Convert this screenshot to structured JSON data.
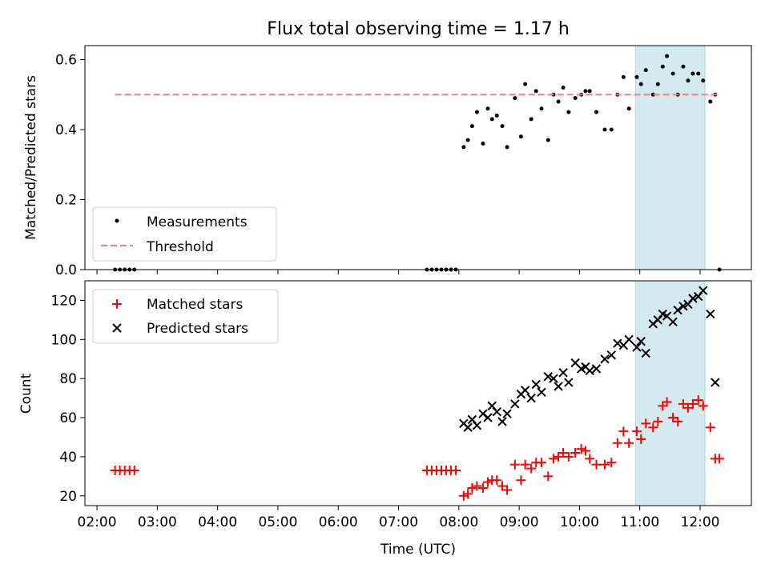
{
  "figure_title": "Flux total observing time = 1.17 h",
  "colors": {
    "measurement": "#000000",
    "threshold": "#ff7a7a",
    "matched": "#ff0000",
    "predicted": "#000000",
    "highlight": "#d3eaf0",
    "highlight_edge": "#a9d6de"
  },
  "chart_data": [
    {
      "type": "scatter",
      "title": "Flux total observing time = 1.17 h",
      "ylabel": "Matched/Predicted stars",
      "xlabel": "",
      "xlim": [
        1.8,
        12.85
      ],
      "ylim": [
        0,
        0.64
      ],
      "yticks": [
        0.0,
        0.2,
        0.4,
        0.6
      ],
      "ytick_labels": [
        "0.0",
        "0.2",
        "0.4",
        "0.6"
      ],
      "xticks": [
        2,
        3,
        4,
        5,
        6,
        7,
        8,
        9,
        10,
        11,
        12
      ],
      "xtick_labels": [],
      "legend": "lower-left",
      "grid": false,
      "highlight_x": [
        10.93,
        12.08
      ],
      "series": [
        {
          "name": "Measurements",
          "kind": "scatter",
          "marker": "dot",
          "x": [
            2.3,
            2.38,
            2.46,
            2.54,
            2.62,
            7.47,
            7.55,
            7.63,
            7.71,
            7.79,
            7.87,
            7.95,
            8.08,
            8.15,
            8.22,
            8.3,
            8.4,
            8.48,
            8.55,
            8.63,
            8.72,
            8.8,
            8.93,
            9.03,
            9.1,
            9.2,
            9.28,
            9.37,
            9.48,
            9.57,
            9.65,
            9.73,
            9.82,
            9.93,
            10.03,
            10.1,
            10.17,
            10.28,
            10.42,
            10.53,
            10.63,
            10.73,
            10.82,
            10.95,
            11.02,
            11.1,
            11.22,
            11.3,
            11.38,
            11.45,
            11.55,
            11.63,
            11.72,
            11.8,
            11.88,
            11.97,
            12.05,
            12.17,
            12.25,
            12.32
          ],
          "y": [
            0.0,
            0.0,
            0.0,
            0.0,
            0.0,
            0.0,
            0.0,
            0.0,
            0.0,
            0.0,
            0.0,
            0.0,
            0.35,
            0.37,
            0.41,
            0.45,
            0.36,
            0.46,
            0.43,
            0.44,
            0.41,
            0.35,
            0.49,
            0.38,
            0.53,
            0.43,
            0.51,
            0.46,
            0.37,
            0.5,
            0.48,
            0.52,
            0.45,
            0.49,
            0.5,
            0.51,
            0.51,
            0.45,
            0.4,
            0.4,
            0.5,
            0.55,
            0.46,
            0.55,
            0.53,
            0.57,
            0.5,
            0.53,
            0.58,
            0.61,
            0.56,
            0.5,
            0.58,
            0.54,
            0.56,
            0.56,
            0.54,
            0.48,
            0.5,
            0.0
          ]
        },
        {
          "name": "Threshold",
          "kind": "line",
          "dashed": true,
          "x": [
            2.3,
            12.32
          ],
          "y": [
            0.5,
            0.5
          ]
        }
      ]
    },
    {
      "type": "scatter",
      "title": "",
      "ylabel": "Count",
      "xlabel": "Time (UTC)",
      "xlim": [
        1.8,
        12.85
      ],
      "ylim": [
        15,
        130
      ],
      "yticks": [
        20,
        40,
        60,
        80,
        100,
        120
      ],
      "ytick_labels": [
        "20",
        "40",
        "60",
        "80",
        "100",
        "120"
      ],
      "xticks": [
        2,
        3,
        4,
        5,
        6,
        7,
        8,
        9,
        10,
        11,
        12
      ],
      "xtick_labels": [
        "02:00",
        "03:00",
        "04:00",
        "05:00",
        "06:00",
        "07:00",
        "08:00",
        "09:00",
        "10:00",
        "11:00",
        "12:00"
      ],
      "legend": "top-left",
      "grid": false,
      "highlight_x": [
        10.93,
        12.08
      ],
      "series": [
        {
          "name": "Matched stars",
          "kind": "scatter",
          "marker": "plus",
          "x": [
            2.3,
            2.38,
            2.46,
            2.54,
            2.62,
            7.47,
            7.55,
            7.63,
            7.71,
            7.79,
            7.87,
            7.95,
            8.08,
            8.15,
            8.22,
            8.3,
            8.4,
            8.48,
            8.55,
            8.63,
            8.72,
            8.8,
            8.93,
            9.03,
            9.1,
            9.2,
            9.28,
            9.37,
            9.48,
            9.57,
            9.65,
            9.73,
            9.82,
            9.93,
            10.03,
            10.1,
            10.17,
            10.28,
            10.42,
            10.53,
            10.63,
            10.73,
            10.82,
            10.95,
            11.02,
            11.1,
            11.22,
            11.3,
            11.38,
            11.45,
            11.55,
            11.63,
            11.72,
            11.8,
            11.88,
            11.97,
            12.05,
            12.17,
            12.25,
            12.32
          ],
          "y": [
            33,
            33,
            33,
            33,
            33,
            33,
            33,
            33,
            33,
            33,
            33,
            33,
            20,
            21,
            24,
            25,
            24,
            27,
            28,
            28,
            25,
            23,
            36,
            28,
            36,
            34,
            37,
            37,
            30,
            39,
            40,
            42,
            40,
            42,
            44,
            43,
            39,
            36,
            36,
            37,
            47,
            53,
            47,
            53,
            49,
            57,
            55,
            58,
            66,
            68,
            60,
            58,
            67,
            65,
            67,
            69,
            66,
            55,
            39,
            39
          ]
        },
        {
          "name": "Predicted stars",
          "kind": "scatter",
          "marker": "x",
          "x": [
            8.08,
            8.15,
            8.22,
            8.3,
            8.4,
            8.48,
            8.55,
            8.63,
            8.72,
            8.8,
            8.93,
            9.03,
            9.1,
            9.2,
            9.28,
            9.37,
            9.48,
            9.57,
            9.65,
            9.73,
            9.82,
            9.93,
            10.03,
            10.1,
            10.17,
            10.28,
            10.42,
            10.53,
            10.63,
            10.73,
            10.82,
            10.95,
            11.02,
            11.1,
            11.22,
            11.3,
            11.38,
            11.45,
            11.55,
            11.63,
            11.72,
            11.8,
            11.88,
            11.97,
            12.05,
            12.17,
            12.25
          ],
          "y": [
            57,
            55,
            59,
            56,
            62,
            60,
            66,
            63,
            58,
            62,
            67,
            72,
            74,
            70,
            77,
            73,
            81,
            80,
            76,
            83,
            78,
            88,
            85,
            86,
            84,
            85,
            90,
            92,
            98,
            97,
            100,
            96,
            99,
            93,
            108,
            110,
            113,
            112,
            109,
            115,
            117,
            118,
            121,
            122,
            125,
            113,
            78
          ]
        }
      ]
    }
  ]
}
